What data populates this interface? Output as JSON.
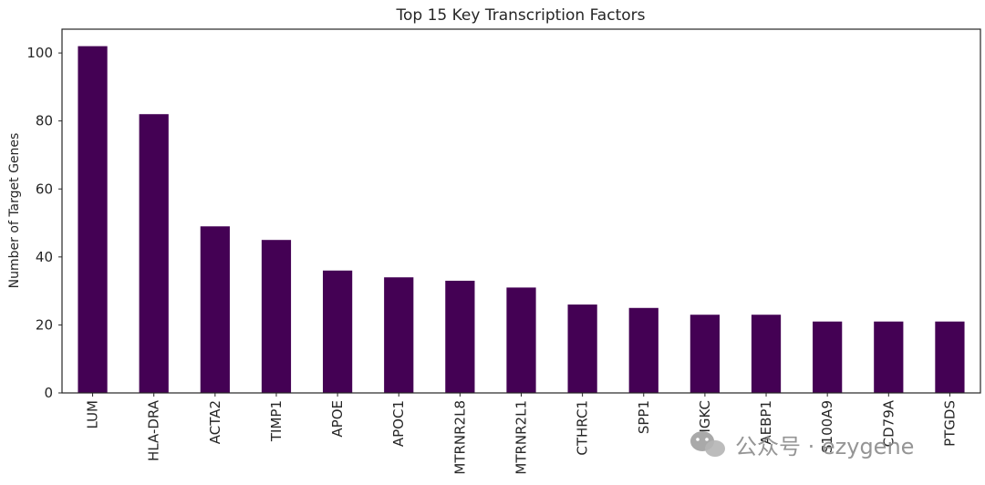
{
  "chart_data": {
    "type": "bar",
    "title": "Top 15 Key Transcription Factors",
    "xlabel": "",
    "ylabel": "Number of Target Genes",
    "categories": [
      "LUM",
      "HLA-DRA",
      "ACTA2",
      "TIMP1",
      "APOE",
      "APOC1",
      "MTRNR2L8",
      "MTRNR2L1",
      "CTHRC1",
      "SPP1",
      "IGKC",
      "AEBP1",
      "S100A9",
      "CD79A",
      "PTGDS"
    ],
    "values": [
      102,
      82,
      49,
      45,
      36,
      34,
      33,
      31,
      26,
      25,
      23,
      23,
      21,
      21,
      21
    ],
    "ylim": [
      0,
      107
    ],
    "yticks": [
      0,
      20,
      40,
      60,
      80,
      100
    ],
    "bar_color": "#440154",
    "grid": false,
    "legend": "none"
  },
  "watermark": {
    "text": "公众号 · ezygene",
    "icon": "wechat-icon"
  }
}
